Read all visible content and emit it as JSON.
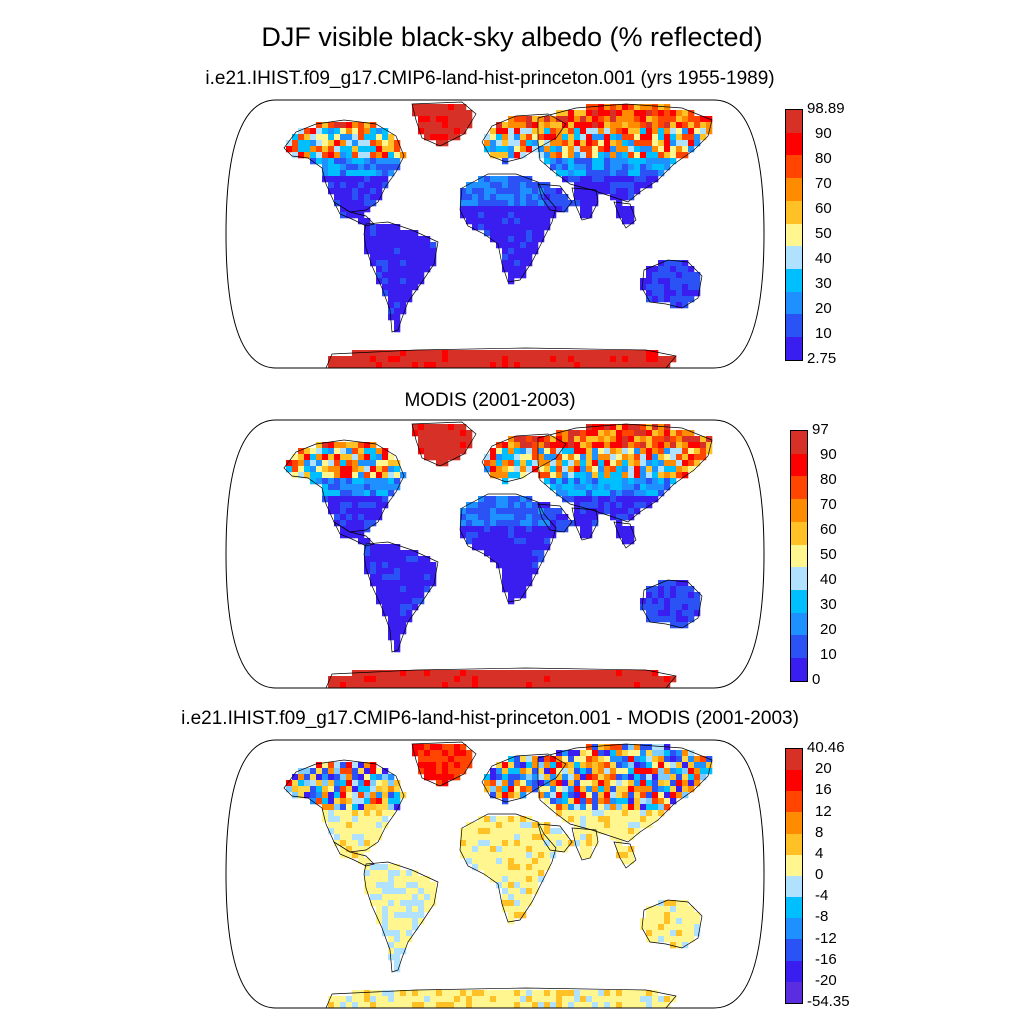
{
  "title": "DJF visible black-sky albedo (% reflected)",
  "panels": [
    {
      "id": "model",
      "title": "i.e21.IHIST.f09_g17.CMIP6-land-hist-princeton.001 (yrs 1955-1989)",
      "colorbar": {
        "labels": [
          "98.89",
          "90",
          "80",
          "70",
          "60",
          "50",
          "40",
          "30",
          "20",
          "10",
          "2.75"
        ],
        "colors": [
          "#d73027",
          "#ff0000",
          "#ff4500",
          "#ff8c00",
          "#ffc125",
          "#fff68f",
          "#b0e2ff",
          "#00bfff",
          "#1e90ff",
          "#2a52f5",
          "#3a1ef0"
        ]
      }
    },
    {
      "id": "modis",
      "title": "MODIS (2001-2003)",
      "colorbar": {
        "labels": [
          "97",
          "90",
          "80",
          "70",
          "60",
          "50",
          "40",
          "30",
          "20",
          "10",
          "0"
        ],
        "colors": [
          "#d73027",
          "#ff0000",
          "#ff4500",
          "#ff8c00",
          "#ffc125",
          "#fff68f",
          "#b0e2ff",
          "#00bfff",
          "#1e90ff",
          "#2a52f5",
          "#3a1ef0"
        ]
      }
    },
    {
      "id": "diff",
      "title": "i.e21.IHIST.f09_g17.CMIP6-land-hist-princeton.001 - MODIS (2001-2003)",
      "colorbar": {
        "labels": [
          "40.46",
          "20",
          "16",
          "12",
          "8",
          "4",
          "0",
          "-4",
          "-8",
          "-12",
          "-16",
          "-20",
          "-54.35"
        ],
        "colors": [
          "#d73027",
          "#ff0000",
          "#ff4500",
          "#ff8c00",
          "#ffc125",
          "#fff68f",
          "#b0e2ff",
          "#00bfff",
          "#1e90ff",
          "#2a52f5",
          "#3a1ef0",
          "#5a2ee0"
        ]
      }
    }
  ]
}
